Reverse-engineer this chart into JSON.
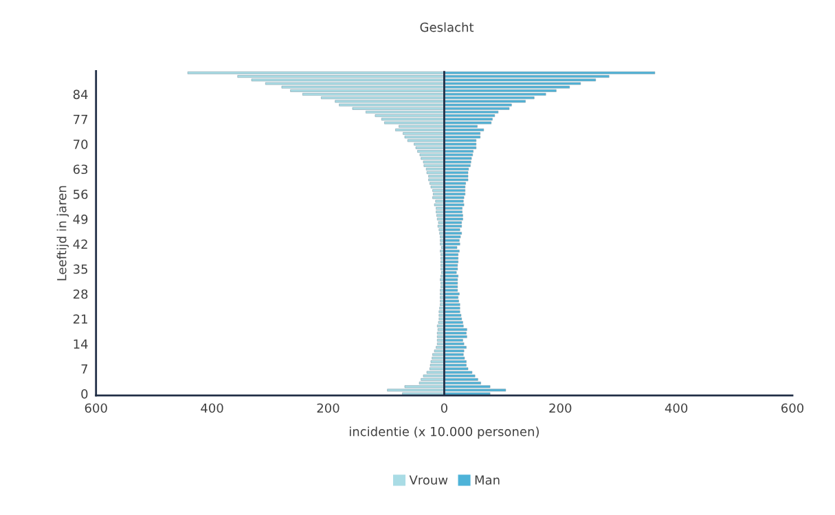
{
  "chart_data": {
    "type": "bar",
    "orientation": "horizontal",
    "title": "Geslacht",
    "xlabel": "incidentie (x 10.000 personen)",
    "ylabel": "Leeftijd in jaren",
    "categories": [
      null,
      null,
      null,
      null,
      null,
      null,
      "84",
      null,
      null,
      null,
      null,
      null,
      null,
      "77",
      null,
      null,
      null,
      null,
      null,
      null,
      "70",
      null,
      null,
      null,
      null,
      null,
      null,
      "63",
      null,
      null,
      null,
      null,
      null,
      null,
      "56",
      null,
      null,
      null,
      null,
      null,
      null,
      "49",
      null,
      null,
      null,
      null,
      null,
      null,
      "42",
      null,
      null,
      null,
      null,
      null,
      null,
      "35",
      null,
      null,
      null,
      null,
      null,
      null,
      "28",
      null,
      null,
      null,
      null,
      null,
      null,
      "21",
      null,
      null,
      null,
      null,
      null,
      null,
      "14",
      null,
      null,
      null,
      null,
      null,
      null,
      "7",
      null,
      null,
      null,
      null,
      null,
      null,
      "0"
    ],
    "series": [
      {
        "name": "Vrouw",
        "color": "#a9dce5",
        "values": [
          -442,
          -356,
          -332,
          -308,
          -280,
          -265,
          -244,
          -212,
          -188,
          -181,
          -158,
          -135,
          -119,
          -108,
          -103,
          -78,
          -84,
          -71,
          -68,
          -63,
          -52,
          -49,
          -46,
          -42,
          -40,
          -36,
          -35,
          -31,
          -30,
          -27,
          -27,
          -25,
          -23,
          -20,
          -19,
          -20,
          -15,
          -17,
          -14,
          -14,
          -13,
          -12,
          -10,
          -11,
          -9,
          -8,
          -7,
          -7,
          -7,
          -5,
          -7,
          -6,
          -6,
          -6,
          -6,
          -6,
          -5,
          -6,
          -7,
          -6,
          -6,
          -7,
          -7,
          -7,
          -7,
          -7,
          -8,
          -9,
          -9,
          -9,
          -10,
          -12,
          -11,
          -12,
          -12,
          -12,
          -12,
          -14,
          -17,
          -20,
          -21,
          -23,
          -24,
          -25,
          -30,
          -36,
          -40,
          -43,
          -68,
          -98,
          -72
        ]
      },
      {
        "name": "Man",
        "color": "#4eb3d8",
        "values": [
          363,
          284,
          261,
          235,
          216,
          193,
          175,
          155,
          140,
          116,
          112,
          93,
          87,
          83,
          81,
          57,
          68,
          62,
          62,
          55,
          55,
          55,
          50,
          49,
          47,
          46,
          45,
          42,
          41,
          41,
          41,
          37,
          36,
          36,
          36,
          34,
          33,
          34,
          31,
          31,
          32,
          32,
          30,
          30,
          27,
          30,
          28,
          26,
          27,
          22,
          26,
          24,
          24,
          24,
          23,
          23,
          21,
          24,
          23,
          23,
          23,
          23,
          26,
          24,
          25,
          27,
          27,
          27,
          29,
          30,
          32,
          33,
          39,
          38,
          39,
          32,
          34,
          38,
          34,
          33,
          35,
          38,
          38,
          41,
          48,
          53,
          58,
          63,
          79,
          106,
          79
        ]
      }
    ],
    "xlim": [
      -600,
      600
    ],
    "xticks": [
      {
        "value": -600,
        "label": "600"
      },
      {
        "value": -400,
        "label": "400"
      },
      {
        "value": -200,
        "label": "200"
      },
      0,
      200,
      400,
      600
    ],
    "ref_lines": [
      {
        "axis": "x",
        "value": 0,
        "color": "#1f2d45"
      }
    ],
    "stacked": true,
    "grid": false,
    "legend": "bottom"
  }
}
